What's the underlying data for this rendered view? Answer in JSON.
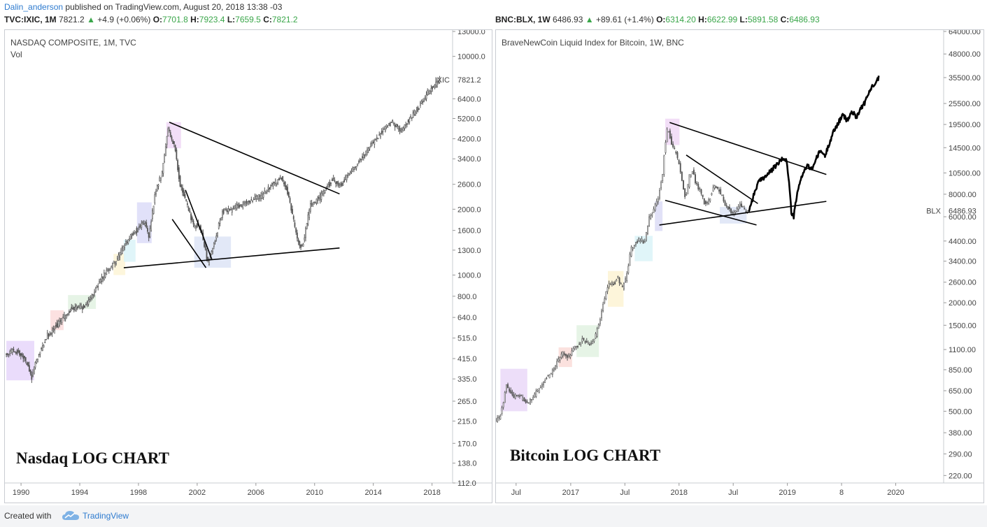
{
  "header": {
    "author": "Dalin_anderson",
    "published_text": " published on TradingView.com, August 20, 2018 13:38 -03"
  },
  "left_ohlc": {
    "symbol": "TVC:IXIC, 1M",
    "last": "7821.2",
    "change": "+4.9 (+0.06%)",
    "o_label": "O:",
    "o": "7701.8",
    "h_label": "H:",
    "h": "7923.4",
    "l_label": "L:",
    "l": "7659.5",
    "c_label": "C:",
    "c": "7821.2"
  },
  "right_ohlc": {
    "symbol": "BNC:BLX, 1W",
    "last": "6486.93",
    "change": "+89.61 (+1.4%)",
    "o_label": "O:",
    "o": "6314.20",
    "h_label": "H:",
    "h": "6622.99",
    "l_label": "L:",
    "l": "5891.58",
    "c_label": "C:",
    "c": "6486.93"
  },
  "footer": {
    "created_with": "Created with",
    "brand": "TradingView"
  },
  "colors": {
    "accent_blue": "#2e7bcf",
    "up_green": "#3aa64a",
    "candle": "#555555",
    "trendline": "#000000"
  },
  "chart_data": [
    {
      "type": "candlestick",
      "title": "NASDAQ COMPOSITE, 1M, TVC",
      "subtitle": "Vol",
      "annotation": "Nasdaq LOG CHART",
      "scale": "log",
      "price_tag_label": "IXIC",
      "price_tag_value": "7821.2",
      "last_price": 7821.2,
      "ylim": [
        112,
        13000
      ],
      "x_range": [
        1988.9,
        2019.4
      ],
      "y_ticks": [
        "13000.0",
        "10000.0",
        "7821.2",
        "6400.0",
        "5200.0",
        "4200.0",
        "3400.0",
        "2600.0",
        "2000.0",
        "1600.0",
        "1300.0",
        "1000.0",
        "800.0",
        "640.0",
        "515.0",
        "415.0",
        "335.0",
        "265.0",
        "215.0",
        "170.0",
        "138.0",
        "112.0"
      ],
      "y_tick_values": [
        13000,
        10000,
        6400,
        5200,
        4200,
        3400,
        2600,
        2000,
        1600,
        1300,
        1000,
        800,
        640,
        515,
        415,
        335,
        265,
        215,
        170,
        138,
        112
      ],
      "x_ticks": [
        {
          "label": "1990",
          "x": 1990
        },
        {
          "label": "1994",
          "x": 1994
        },
        {
          "label": "1998",
          "x": 1998
        },
        {
          "label": "2002",
          "x": 2002
        },
        {
          "label": "2006",
          "x": 2006
        },
        {
          "label": "2010",
          "x": 2010
        },
        {
          "label": "2014",
          "x": 2014
        },
        {
          "label": "2018",
          "x": 2018
        }
      ],
      "price_path": [
        [
          1989.0,
          430
        ],
        [
          1989.5,
          455
        ],
        [
          1990.0,
          440
        ],
        [
          1990.5,
          395
        ],
        [
          1990.8,
          340
        ],
        [
          1991.2,
          420
        ],
        [
          1991.8,
          520
        ],
        [
          1992.5,
          590
        ],
        [
          1993.5,
          700
        ],
        [
          1994.5,
          720
        ],
        [
          1995.5,
          950
        ],
        [
          1996.5,
          1150
        ],
        [
          1997.5,
          1500
        ],
        [
          1998.5,
          1750
        ],
        [
          1998.8,
          1500
        ],
        [
          1999.2,
          2300
        ],
        [
          1999.7,
          3000
        ],
        [
          2000.1,
          4700
        ],
        [
          2000.3,
          4300
        ],
        [
          2000.6,
          3700
        ],
        [
          2000.9,
          2600
        ],
        [
          2001.3,
          2200
        ],
        [
          2001.8,
          1700
        ],
        [
          2002.3,
          1650
        ],
        [
          2002.8,
          1150
        ],
        [
          2003.3,
          1450
        ],
        [
          2003.8,
          1950
        ],
        [
          2004.5,
          2000
        ],
        [
          2005.5,
          2150
        ],
        [
          2006.5,
          2300
        ],
        [
          2007.2,
          2600
        ],
        [
          2007.8,
          2800
        ],
        [
          2008.3,
          2350
        ],
        [
          2008.9,
          1450
        ],
        [
          2009.2,
          1300
        ],
        [
          2009.8,
          2100
        ],
        [
          2010.5,
          2300
        ],
        [
          2011.3,
          2750
        ],
        [
          2011.8,
          2550
        ],
        [
          2012.5,
          2950
        ],
        [
          2013.5,
          3600
        ],
        [
          2014.5,
          4400
        ],
        [
          2015.3,
          5000
        ],
        [
          2016.0,
          4600
        ],
        [
          2016.5,
          5100
        ],
        [
          2017.2,
          5900
        ],
        [
          2017.8,
          6800
        ],
        [
          2018.6,
          7821.2
        ]
      ],
      "trendlines": [
        {
          "from": [
            2000.1,
            5000
          ],
          "to": [
            2011.7,
            2350
          ]
        },
        {
          "from": [
            1997.0,
            1080
          ],
          "to": [
            2011.7,
            1330
          ]
        },
        {
          "from": [
            2001.2,
            2450
          ],
          "to": [
            2003.0,
            1180
          ]
        },
        {
          "from": [
            2000.3,
            1800
          ],
          "to": [
            2002.6,
            1080
          ]
        }
      ],
      "highlights": [
        {
          "x0": 1989.0,
          "x1": 1990.9,
          "y0": 330,
          "y1": 500,
          "color": "#e6d6fa"
        },
        {
          "x0": 1992.0,
          "x1": 1992.9,
          "y0": 560,
          "y1": 690,
          "color": "#fbdcdc"
        },
        {
          "x0": 1993.2,
          "x1": 1995.1,
          "y0": 700,
          "y1": 810,
          "color": "#e2f2e2"
        },
        {
          "x0": 1996.3,
          "x1": 1997.1,
          "y0": 1000,
          "y1": 1250,
          "color": "#fdf5d6"
        },
        {
          "x0": 1997.0,
          "x1": 1997.8,
          "y0": 1150,
          "y1": 1450,
          "color": "#daf3f8"
        },
        {
          "x0": 1997.9,
          "x1": 1998.9,
          "y0": 1400,
          "y1": 2150,
          "color": "#dcdcf8"
        },
        {
          "x0": 1999.9,
          "x1": 2000.9,
          "y0": 3800,
          "y1": 5000,
          "color": "#f0d8f6"
        },
        {
          "x0": 2001.8,
          "x1": 2004.3,
          "y0": 1080,
          "y1": 1500,
          "color": "#dde4f6"
        }
      ]
    },
    {
      "type": "candlestick",
      "title": "BraveNewCoin Liquid Index for Bitcoin, 1W, BNC",
      "annotation": "Bitcoin LOG CHART",
      "scale": "log",
      "price_tag_label": "BLX",
      "price_tag_value": "6486.93",
      "last_price": 6486.93,
      "ylim": [
        200,
        64000
      ],
      "x_range": [
        0,
        100
      ],
      "y_ticks": [
        "64000.00",
        "48000.00",
        "35500.00",
        "25500.00",
        "19500.00",
        "14500.00",
        "10500.00",
        "8000.00",
        "6000.00",
        "4400.00",
        "3400.00",
        "2600.00",
        "2000.00",
        "1500.00",
        "1100.00",
        "850.00",
        "650.00",
        "500.00",
        "380.00",
        "290.00",
        "220.00"
      ],
      "y_tick_values": [
        64000,
        48000,
        35500,
        25500,
        19500,
        14500,
        10500,
        8000,
        6000,
        4400,
        3400,
        2600,
        2000,
        1500,
        1100,
        850,
        650,
        500,
        380,
        290,
        220
      ],
      "x_ticks": [
        {
          "label": "Jul",
          "x": 4.5
        },
        {
          "label": "2017",
          "x": 16.7
        },
        {
          "label": "Jul",
          "x": 28.8
        },
        {
          "label": "2018",
          "x": 40.9
        },
        {
          "label": "Jul",
          "x": 53.0
        },
        {
          "label": "2019",
          "x": 65.1
        },
        {
          "label": "8",
          "x": 77.2
        },
        {
          "label": "2020",
          "x": 89.3
        }
      ],
      "candles_path": [
        [
          0,
          440
        ],
        [
          1.2,
          470
        ],
        [
          2.0,
          560
        ],
        [
          2.6,
          700
        ],
        [
          3.4,
          650
        ],
        [
          4.2,
          600
        ],
        [
          5.2,
          620
        ],
        [
          6.5,
          580
        ],
        [
          7.5,
          550
        ],
        [
          8.5,
          600
        ],
        [
          9.5,
          640
        ],
        [
          10.5,
          700
        ],
        [
          11.5,
          760
        ],
        [
          12.5,
          800
        ],
        [
          13.5,
          880
        ],
        [
          14.5,
          1000
        ],
        [
          15.5,
          1050
        ],
        [
          16.5,
          1000
        ],
        [
          17.5,
          1100
        ],
        [
          18.5,
          1150
        ],
        [
          19.5,
          1250
        ],
        [
          20.5,
          1200
        ],
        [
          21.5,
          1180
        ],
        [
          22.5,
          1300
        ],
        [
          23.5,
          1600
        ],
        [
          24.5,
          2100
        ],
        [
          25.5,
          2600
        ],
        [
          26.5,
          2500
        ],
        [
          27.5,
          2800
        ],
        [
          28.5,
          2400
        ],
        [
          29.5,
          2800
        ],
        [
          30.5,
          4000
        ],
        [
          31.5,
          4300
        ],
        [
          32.5,
          4500
        ],
        [
          33.5,
          4300
        ],
        [
          34.5,
          5800
        ],
        [
          35.5,
          6500
        ],
        [
          36.5,
          7500
        ],
        [
          37.5,
          10000
        ],
        [
          38.0,
          14500
        ],
        [
          38.7,
          19000
        ],
        [
          39.5,
          15500
        ],
        [
          40.5,
          13500
        ],
        [
          41.5,
          11000
        ],
        [
          42.0,
          9000
        ],
        [
          42.7,
          7500
        ],
        [
          43.5,
          10000
        ],
        [
          44.3,
          11000
        ],
        [
          45.0,
          9000
        ],
        [
          46.0,
          8500
        ],
        [
          47.0,
          7000
        ],
        [
          48.0,
          7500
        ],
        [
          49.0,
          9000
        ],
        [
          50.0,
          8500
        ],
        [
          51.0,
          7500
        ],
        [
          52.0,
          6800
        ],
        [
          53.0,
          6300
        ],
        [
          54.0,
          6500
        ],
        [
          55.0,
          7000
        ],
        [
          56.0,
          6400
        ],
        [
          56.5,
          6486.93
        ]
      ],
      "projection_path": [
        [
          56.5,
          6500
        ],
        [
          57.5,
          7800
        ],
        [
          58.5,
          9200
        ],
        [
          59.5,
          9800
        ],
        [
          60.5,
          10200
        ],
        [
          61.5,
          10800
        ],
        [
          62.5,
          11500
        ],
        [
          63.5,
          12200
        ],
        [
          64.5,
          12800
        ],
        [
          65.0,
          12000
        ],
        [
          65.6,
          8500
        ],
        [
          66.0,
          6300
        ],
        [
          66.5,
          6000
        ],
        [
          67.2,
          7800
        ],
        [
          68.2,
          10000
        ],
        [
          69.5,
          11500
        ],
        [
          70.5,
          11000
        ],
        [
          71.5,
          12500
        ],
        [
          72.5,
          14000
        ],
        [
          73.5,
          13000
        ],
        [
          74.5,
          15500
        ],
        [
          75.5,
          18000
        ],
        [
          76.5,
          20000
        ],
        [
          77.5,
          22000
        ],
        [
          78.5,
          20500
        ],
        [
          79.5,
          23000
        ],
        [
          80.5,
          21500
        ],
        [
          81.5,
          24000
        ],
        [
          82.5,
          26000
        ],
        [
          83.5,
          30000
        ],
        [
          84.5,
          33000
        ],
        [
          85.5,
          35500
        ]
      ],
      "trendlines": [
        {
          "from": [
            38.8,
            20000
          ],
          "to": [
            73.8,
            10300
          ]
        },
        {
          "from": [
            36.5,
            5400
          ],
          "to": [
            73.8,
            7300
          ]
        },
        {
          "from": [
            42.5,
            13200
          ],
          "to": [
            58.5,
            7100
          ]
        },
        {
          "from": [
            37.8,
            7400
          ],
          "to": [
            58.2,
            5400
          ]
        }
      ],
      "highlights": [
        {
          "x0": 1.0,
          "x1": 7.0,
          "y0": 500,
          "y1": 860,
          "color": "#ead8f8"
        },
        {
          "x0": 14.0,
          "x1": 17.0,
          "y0": 880,
          "y1": 1130,
          "color": "#fadcd8"
        },
        {
          "x0": 18.0,
          "x1": 23.0,
          "y0": 1000,
          "y1": 1500,
          "color": "#e2f2e2"
        },
        {
          "x0": 25.0,
          "x1": 28.5,
          "y0": 1900,
          "y1": 3000,
          "color": "#fdf3d4"
        },
        {
          "x0": 31.0,
          "x1": 35.0,
          "y0": 3400,
          "y1": 4700,
          "color": "#daf3f8"
        },
        {
          "x0": 35.5,
          "x1": 37.2,
          "y0": 5000,
          "y1": 7300,
          "color": "#dcdcf6"
        },
        {
          "x0": 37.8,
          "x1": 41.0,
          "y0": 15000,
          "y1": 21000,
          "color": "#f0d8f6"
        },
        {
          "x0": 50.0,
          "x1": 56.0,
          "y0": 5500,
          "y1": 6800,
          "color": "#dde4f6"
        }
      ]
    }
  ]
}
